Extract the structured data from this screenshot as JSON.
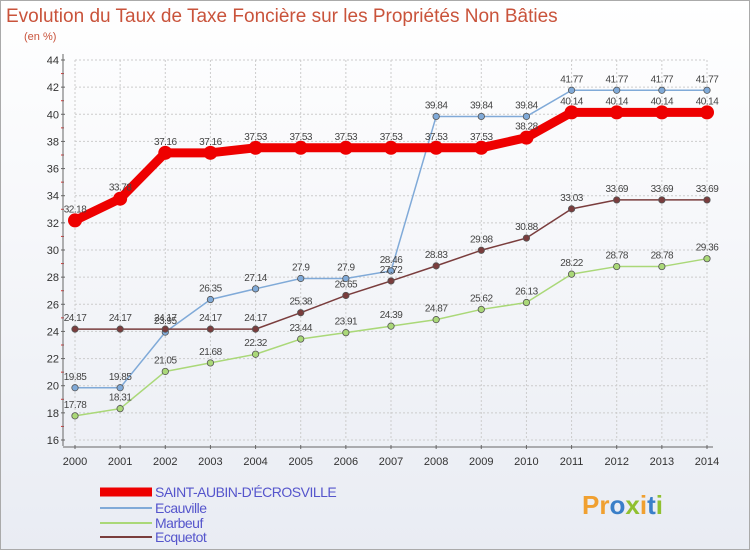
{
  "title": "Evolution du Taux de Taxe Foncière sur les Propriétés Non Bâties",
  "subtitle": "(en %)",
  "logo": {
    "letters": [
      "P",
      "r",
      "o",
      "x",
      "i",
      "t",
      "i"
    ],
    "colors": [
      "#f0a030",
      "#f0a030",
      "#3a7fc8",
      "#90c030",
      "#f0a030",
      "#3a7fc8",
      "#90c030"
    ]
  },
  "chart_data": {
    "type": "line",
    "title": "Evolution du Taux de Taxe Foncière sur les Propriétés Non Bâties",
    "subtitle": "(en %)",
    "x": [
      "2000",
      "2001",
      "2002",
      "2003",
      "2004",
      "2005",
      "2006",
      "2007",
      "2008",
      "2009",
      "2010",
      "2011",
      "2012",
      "2013",
      "2014"
    ],
    "ylim": [
      16,
      44
    ],
    "yticks": [
      "16",
      "18",
      "20",
      "22",
      "24",
      "26",
      "28",
      "30",
      "32",
      "34",
      "36",
      "38",
      "40",
      "42",
      "44"
    ],
    "grid": true,
    "legend_position": "bottom-left",
    "series": [
      {
        "name": "SAINT-AUBIN-D'ÉCROSVILLE",
        "color": "#ee0000",
        "values": [
          32.18,
          33.78,
          37.16,
          37.16,
          37.53,
          37.53,
          37.53,
          37.53,
          37.53,
          37.53,
          38.28,
          40.14,
          40.14,
          40.14,
          40.14
        ],
        "labels": [
          "32.18",
          "33.78",
          "37.16",
          "37.16",
          "37.53",
          "37.53",
          "37.53",
          "37.53",
          "37.53",
          "37.53",
          "38.28",
          "40.14",
          "40.14",
          "40.14",
          "40.14"
        ]
      },
      {
        "name": "Ecauville",
        "color": "#80aad8",
        "values": [
          19.85,
          19.85,
          23.95,
          26.35,
          27.14,
          27.9,
          27.9,
          28.46,
          39.84,
          39.84,
          39.84,
          41.77,
          41.77,
          41.77,
          41.77
        ],
        "labels": [
          "19.85",
          "19.85",
          "23.95",
          "26.35",
          "27.14",
          "27.9",
          "27.9",
          "28.46",
          "39.84",
          "39.84",
          "39.84",
          "41.77",
          "41.77",
          "41.77",
          "41.77"
        ]
      },
      {
        "name": "Marbeuf",
        "color": "#aad878",
        "values": [
          17.78,
          18.31,
          21.05,
          21.68,
          22.32,
          23.44,
          23.91,
          24.39,
          24.87,
          25.62,
          26.13,
          28.22,
          28.78,
          28.78,
          29.36
        ],
        "labels": [
          "17.78",
          "18.31",
          "21.05",
          "21.68",
          "22.32",
          "23.44",
          "23.91",
          "24.39",
          "24.87",
          "25.62",
          "26.13",
          "28.22",
          "28.78",
          "28.78",
          "29.36"
        ]
      },
      {
        "name": "Ecquetot",
        "color": "#7a3d3d",
        "values": [
          24.17,
          24.17,
          24.17,
          24.17,
          24.17,
          25.38,
          26.65,
          27.72,
          28.83,
          29.98,
          30.88,
          33.03,
          33.69,
          33.69,
          33.69
        ],
        "labels": [
          "24.17",
          "24.17",
          "24.17",
          "24.17",
          "24.17",
          "25.38",
          "26.65",
          "27.72",
          "28.83",
          "29.98",
          "30.88",
          "33.03",
          "33.69",
          "33.69",
          "33.69"
        ]
      }
    ]
  }
}
